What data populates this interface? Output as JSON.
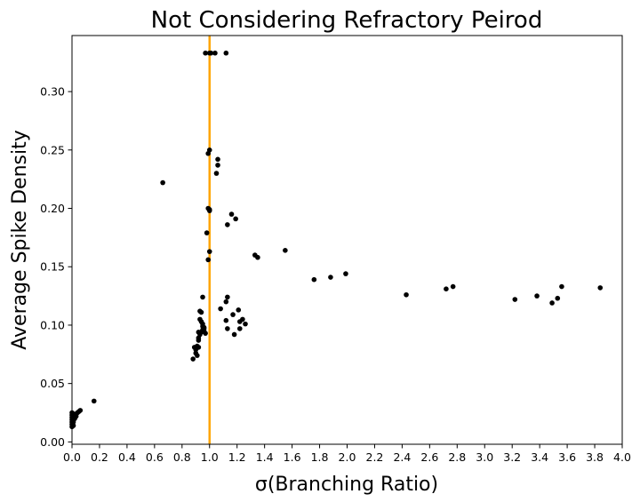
{
  "chart_data": {
    "type": "scatter",
    "title": "Not Considering Refractory Peirod",
    "xlabel": "σ(Branching Ratio)",
    "ylabel": "Average Spike Density",
    "xlim": [
      0.0,
      4.0
    ],
    "ylim": [
      -0.002,
      0.348
    ],
    "xticks": [
      "0.0",
      "0.2",
      "0.4",
      "0.6",
      "0.8",
      "1.0",
      "1.2",
      "1.4",
      "1.6",
      "1.8",
      "2.0",
      "2.2",
      "2.4",
      "2.6",
      "2.8",
      "3.0",
      "3.2",
      "3.4",
      "3.6",
      "3.8",
      "4.0"
    ],
    "yticks": [
      "0.00",
      "0.05",
      "0.10",
      "0.15",
      "0.20",
      "0.25",
      "0.30"
    ],
    "grid": false,
    "marker_color": "#000000",
    "vline": {
      "x": 1.0,
      "color": "#ffa500"
    },
    "points": [
      [
        0.97,
        0.333
      ],
      [
        1.0,
        0.333
      ],
      [
        1.01,
        0.333
      ],
      [
        1.04,
        0.333
      ],
      [
        1.12,
        0.333
      ],
      [
        1.0,
        0.25
      ],
      [
        0.99,
        0.247
      ],
      [
        1.06,
        0.242
      ],
      [
        1.06,
        0.237
      ],
      [
        1.05,
        0.23
      ],
      [
        0.66,
        0.222
      ],
      [
        0.99,
        0.2
      ],
      [
        1.0,
        0.199
      ],
      [
        1.0,
        0.198
      ],
      [
        1.16,
        0.195
      ],
      [
        1.19,
        0.191
      ],
      [
        1.13,
        0.186
      ],
      [
        0.98,
        0.179
      ],
      [
        1.55,
        0.164
      ],
      [
        1.0,
        0.163
      ],
      [
        1.33,
        0.16
      ],
      [
        1.35,
        0.158
      ],
      [
        0.99,
        0.156
      ],
      [
        1.76,
        0.139
      ],
      [
        1.88,
        0.141
      ],
      [
        1.99,
        0.144
      ],
      [
        2.43,
        0.126
      ],
      [
        2.72,
        0.131
      ],
      [
        2.77,
        0.133
      ],
      [
        3.22,
        0.122
      ],
      [
        3.38,
        0.125
      ],
      [
        3.49,
        0.119
      ],
      [
        3.53,
        0.123
      ],
      [
        3.56,
        0.133
      ],
      [
        3.84,
        0.132
      ],
      [
        0.95,
        0.124
      ],
      [
        1.13,
        0.124
      ],
      [
        1.12,
        0.12
      ],
      [
        1.08,
        0.114
      ],
      [
        1.21,
        0.113
      ],
      [
        1.17,
        0.109
      ],
      [
        1.24,
        0.105
      ],
      [
        1.22,
        0.103
      ],
      [
        1.12,
        0.104
      ],
      [
        1.26,
        0.101
      ],
      [
        1.13,
        0.097
      ],
      [
        1.22,
        0.097
      ],
      [
        1.18,
        0.092
      ],
      [
        0.93,
        0.112
      ],
      [
        0.94,
        0.111
      ],
      [
        0.93,
        0.105
      ],
      [
        0.94,
        0.103
      ],
      [
        0.95,
        0.101
      ],
      [
        0.95,
        0.099
      ],
      [
        0.96,
        0.097
      ],
      [
        0.96,
        0.095
      ],
      [
        0.97,
        0.093
      ],
      [
        0.96,
        0.098
      ],
      [
        0.95,
        0.096
      ],
      [
        0.92,
        0.094
      ],
      [
        0.93,
        0.092
      ],
      [
        0.94,
        0.094
      ],
      [
        0.92,
        0.089
      ],
      [
        0.92,
        0.087
      ],
      [
        0.91,
        0.082
      ],
      [
        0.89,
        0.081
      ],
      [
        0.9,
        0.079
      ],
      [
        0.9,
        0.076
      ],
      [
        0.91,
        0.074
      ],
      [
        0.88,
        0.071
      ],
      [
        0.92,
        0.081
      ],
      [
        0.16,
        0.035
      ],
      [
        0.06,
        0.027
      ],
      [
        0.05,
        0.026
      ],
      [
        0.04,
        0.025
      ],
      [
        0.03,
        0.024
      ],
      [
        0.02,
        0.023
      ],
      [
        0.01,
        0.024
      ],
      [
        0.0,
        0.025
      ],
      [
        0.0,
        0.023
      ],
      [
        0.01,
        0.022
      ],
      [
        0.0,
        0.021
      ],
      [
        0.02,
        0.021
      ],
      [
        0.0,
        0.019
      ],
      [
        0.01,
        0.019
      ],
      [
        0.0,
        0.017
      ],
      [
        0.01,
        0.017
      ],
      [
        0.0,
        0.015
      ],
      [
        0.0,
        0.013
      ],
      [
        0.01,
        0.014
      ],
      [
        0.02,
        0.02
      ],
      [
        0.03,
        0.022
      ]
    ]
  }
}
